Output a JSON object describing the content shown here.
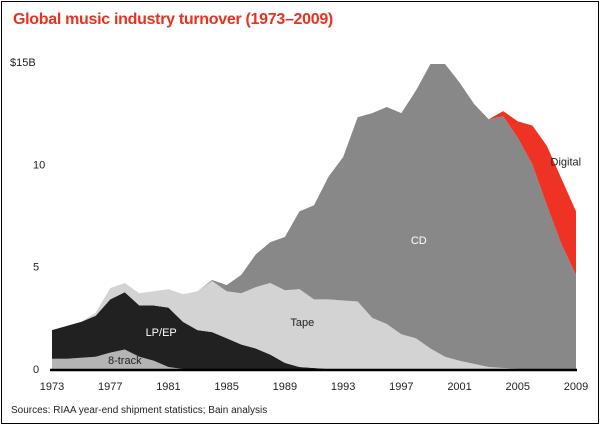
{
  "colors": {
    "title": "#e8311e",
    "eight_track": "#b4b4b4",
    "lp_ep": "#212121",
    "tape": "#d3d3d3",
    "cd": "#888888",
    "digital": "#ee3224",
    "baseline": "#000000"
  },
  "chart_data": {
    "type": "area",
    "stacked": true,
    "title": "Global music industry turnover (1973–2009)",
    "source": "Sources: RIAA year-end shipment statistics; Bain analysis",
    "xlabel": "",
    "ylabel": "",
    "xlim": [
      1973,
      2009
    ],
    "ylim": [
      0,
      15
    ],
    "x_ticks": [
      "1973",
      "1977",
      "1981",
      "1985",
      "1989",
      "1993",
      "1997",
      "2001",
      "2005",
      "2009"
    ],
    "y_ticks": [
      "0",
      "5",
      "10",
      "$15B"
    ],
    "grid": false,
    "x": [
      1973,
      1974,
      1975,
      1976,
      1977,
      1978,
      1979,
      1980,
      1981,
      1982,
      1983,
      1984,
      1985,
      1986,
      1987,
      1988,
      1989,
      1990,
      1991,
      1992,
      1993,
      1994,
      1995,
      1996,
      1997,
      1998,
      1999,
      2000,
      2001,
      2002,
      2003,
      2004,
      2005,
      2006,
      2007,
      2008,
      2009
    ],
    "series": [
      {
        "name": "8-track",
        "label_at": [
          1978,
          0.45
        ],
        "values": [
          0.5,
          0.5,
          0.55,
          0.6,
          0.8,
          0.95,
          0.6,
          0.4,
          0.1,
          0,
          0,
          0,
          0,
          0,
          0,
          0,
          0,
          0,
          0,
          0,
          0,
          0,
          0,
          0,
          0,
          0,
          0,
          0,
          0,
          0,
          0,
          0,
          0,
          0,
          0,
          0,
          0
        ]
      },
      {
        "name": "LP/EP",
        "label_at": [
          1980.5,
          1.8
        ],
        "values": [
          1.4,
          1.6,
          1.75,
          2.0,
          2.6,
          2.8,
          2.5,
          2.7,
          2.9,
          2.3,
          1.9,
          1.8,
          1.5,
          1.2,
          1.0,
          0.7,
          0.3,
          0.1,
          0.05,
          0,
          0,
          0,
          0,
          0,
          0,
          0,
          0,
          0,
          0,
          0,
          0,
          0,
          0,
          0,
          0,
          0,
          0
        ]
      },
      {
        "name": "Tape",
        "label_at": [
          1990.2,
          2.3
        ],
        "values": [
          0,
          0,
          0,
          0.15,
          0.55,
          0.45,
          0.6,
          0.7,
          0.9,
          1.35,
          1.9,
          2.5,
          2.3,
          2.5,
          3.0,
          3.5,
          3.55,
          3.8,
          3.35,
          3.4,
          3.35,
          3.3,
          2.5,
          2.2,
          1.7,
          1.5,
          1.0,
          0.6,
          0.4,
          0.25,
          0.1,
          0.05,
          0,
          0,
          0,
          0,
          0
        ]
      },
      {
        "name": "CD",
        "label_at": [
          1998.2,
          6.3
        ],
        "values": [
          0,
          0,
          0,
          0,
          0,
          0,
          0,
          0,
          0,
          0,
          0,
          0.05,
          0.3,
          0.9,
          1.6,
          2.0,
          2.6,
          3.8,
          4.6,
          6.0,
          7.0,
          9.0,
          10.0,
          10.6,
          10.8,
          12.1,
          13.9,
          14.3,
          13.6,
          12.7,
          12.1,
          12.3,
          11.3,
          10.0,
          8.0,
          6.1,
          4.6
        ]
      },
      {
        "name": "Digital",
        "label_at": [
          2008.3,
          10.15
        ],
        "values": [
          0,
          0,
          0,
          0,
          0,
          0,
          0,
          0,
          0,
          0,
          0,
          0,
          0,
          0,
          0,
          0,
          0,
          0,
          0,
          0,
          0,
          0,
          0,
          0,
          0,
          0,
          0,
          0,
          0,
          0,
          0,
          0.25,
          0.8,
          1.9,
          2.9,
          3.2,
          3.1
        ]
      }
    ]
  }
}
